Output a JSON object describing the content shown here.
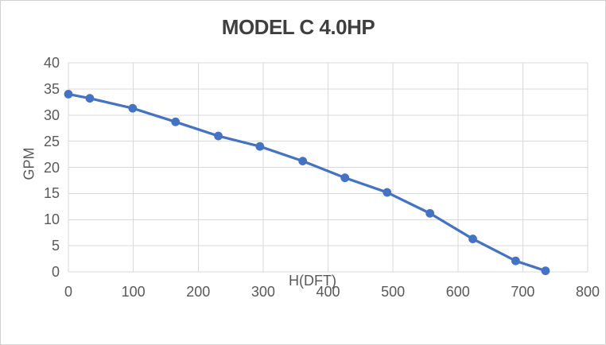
{
  "chart_data": {
    "type": "line",
    "title": "MODEL C 4.0HP",
    "xlabel": "H(DFT)",
    "ylabel": "GPM",
    "x": [
      0,
      33,
      99,
      165,
      231,
      295,
      361,
      426,
      491,
      557,
      623,
      689,
      735
    ],
    "y": [
      34,
      33.2,
      31.3,
      28.7,
      26,
      24,
      21.2,
      18,
      15.2,
      11.2,
      6.3,
      2.1,
      0.2
    ],
    "xlim": [
      0,
      800
    ],
    "ylim": [
      0,
      40
    ],
    "x_ticks": [
      0,
      100,
      200,
      300,
      400,
      500,
      600,
      700,
      800
    ],
    "y_ticks": [
      0,
      5,
      10,
      15,
      20,
      25,
      30,
      35,
      40
    ],
    "grid": true,
    "legend": false,
    "marker": "circle",
    "colors": {
      "line": "#4472C4",
      "marker": "#4472C4",
      "gridline": "#D9D9D9",
      "tick_text": "#595959",
      "title_text": "#3F3F3F",
      "background": "#FFFFFF",
      "frame_border": "#D2D2D2"
    }
  }
}
